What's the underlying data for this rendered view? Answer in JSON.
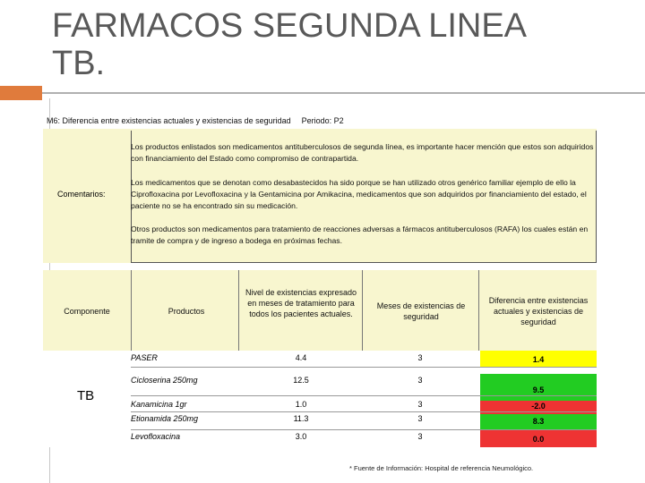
{
  "slide": {
    "title": "FARMACOS SEGUNDA LINEA\nTB.",
    "m6_label": "M6: Diferencia entre existencias actuales y existencias de seguridad",
    "period_label": "Periodo:  P2"
  },
  "comments": {
    "label": "Comentarios:",
    "paragraphs": [
      "Los productos enlistados son medicamentos antituberculosos de segunda línea, es importante hacer mención que estos son adquiridos con financiamiento del Estado como compromiso de contrapartida.",
      "Los medicamentos que se denotan como desabastecidos ha sido porque se han utilizado otros genérico familiar ejemplo de ello la Ciprofloxacina por Levofloxacina y la Gentamicina por Amikacina, medicamentos que son adquiridos por financiamiento del estado, el paciente no se ha encontrado sin su medicación.",
      "Otros productos son medicamentos para tratamiento de reacciones adversas a fármacos antituberculosos (RAFA) los cuales están en tramite de compra y de ingreso a bodega en próximas fechas."
    ]
  },
  "table": {
    "headers": {
      "componente": "Componente",
      "productos": "Productos",
      "nivel": "Nivel de existencias expresado en meses de tratamiento para todos los pacientes actuales.",
      "meses": "Meses de existencias de seguridad",
      "diferencia": "Diferencia entre existencias actuales y existencias de seguridad"
    },
    "component": "TB",
    "rows": [
      {
        "product": "PASER",
        "nivel": "4.4",
        "meses": "3",
        "diferencia": "1.4",
        "color": "#ffff00"
      },
      {
        "product": "Cicloserina 250mg",
        "nivel": "12.5",
        "meses": "3",
        "diferencia": "9.5",
        "color": "#22cc22"
      },
      {
        "product": "Kanamicina 1gr",
        "nivel": "1.0",
        "meses": "3",
        "diferencia": "-2.0",
        "color": "#ee3333"
      },
      {
        "product": "Etionamida 250mg",
        "nivel": "11.3",
        "meses": "3",
        "diferencia": "8.3",
        "color": "#22cc22"
      },
      {
        "product": "Levofloxacina",
        "nivel": "3.0",
        "meses": "3",
        "diferencia": "0.0",
        "color": "#ee3333"
      }
    ]
  },
  "footnote": "* Fuente de Información: Hospital de referencia Neumológico."
}
